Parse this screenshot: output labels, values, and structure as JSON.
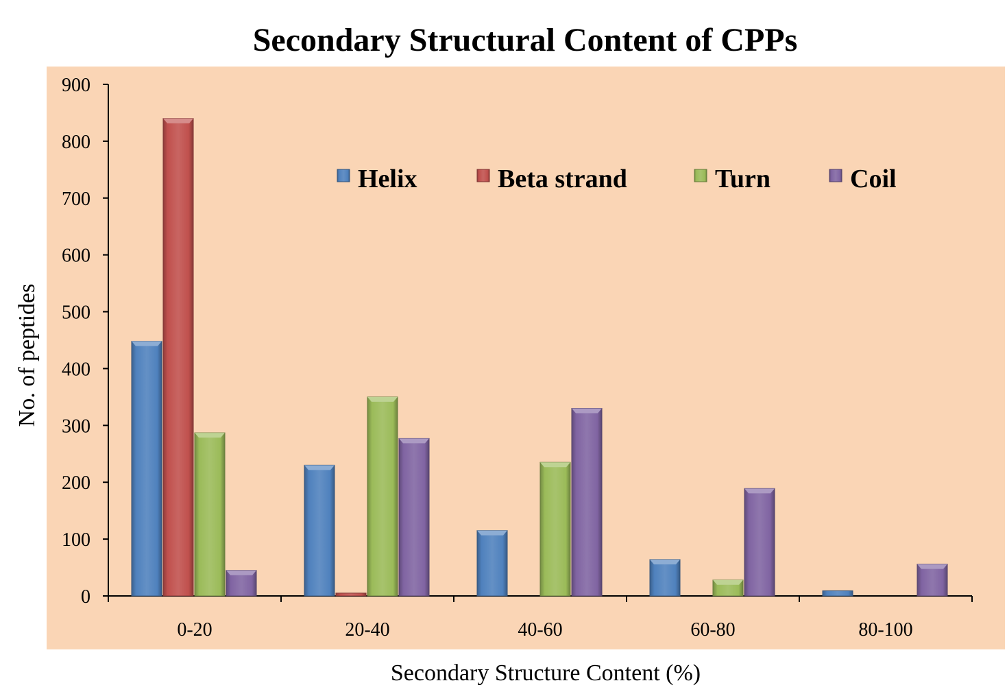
{
  "chart_data": {
    "type": "bar",
    "title": "Secondary Structural Content of CPPs",
    "xlabel": "Secondary Structure Content (%)",
    "ylabel": "No. of peptides",
    "categories": [
      "0-20",
      "20-40",
      "40-60",
      "60-80",
      "80-100"
    ],
    "ylim": [
      0,
      900
    ],
    "yticks": [
      0,
      100,
      200,
      300,
      400,
      500,
      600,
      700,
      800,
      900
    ],
    "grid": false,
    "legend_position": "top-center",
    "plot_background": "#FAD5B5",
    "series": [
      {
        "name": "Helix",
        "color": "#4F81BD",
        "values": [
          448,
          230,
          115,
          64,
          9
        ]
      },
      {
        "name": "Beta strand",
        "color": "#C0504D",
        "values": [
          840,
          5,
          0,
          0,
          0
        ]
      },
      {
        "name": "Turn",
        "color": "#9BBB59",
        "values": [
          287,
          350,
          235,
          28,
          0
        ]
      },
      {
        "name": "Coil",
        "color": "#8064A2",
        "values": [
          45,
          277,
          330,
          189,
          56
        ]
      }
    ]
  }
}
